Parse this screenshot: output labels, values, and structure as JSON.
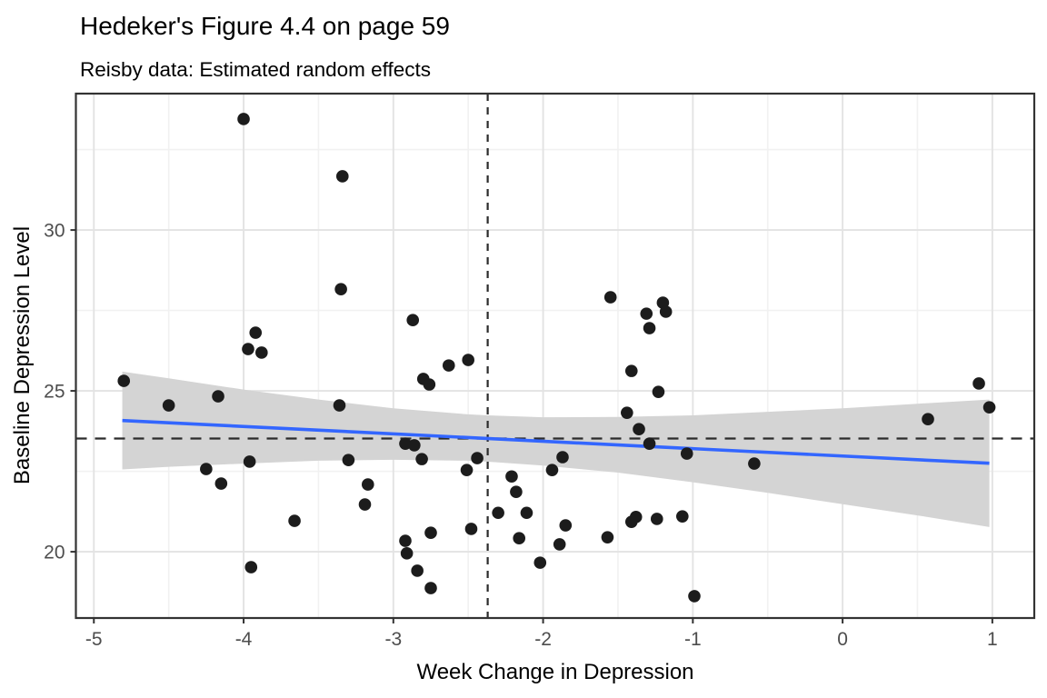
{
  "title": "Hedeker's Figure 4.4 on page 59",
  "subtitle": "Reisby data: Estimated random effects",
  "chart_data": {
    "type": "scatter",
    "title": "Hedeker's Figure 4.4 on page 59",
    "subtitle": "Reisby data: Estimated random effects",
    "xlabel": "Week Change in Depression",
    "ylabel": "Baseline Depression Level",
    "xlim": [
      -5.12,
      1.28
    ],
    "ylim": [
      17.94,
      34.24
    ],
    "x_ticks": [
      -5,
      -4,
      -3,
      -2,
      -1,
      0,
      1
    ],
    "y_ticks": [
      20,
      25,
      30
    ],
    "x_minor_ticks": [
      -4.5,
      -3.5,
      -2.5,
      -1.5,
      -0.5,
      0.5
    ],
    "y_minor_ticks": [
      22.5,
      27.5,
      32.5
    ],
    "grid": true,
    "legend_position": "none",
    "reference_lines": {
      "vline_x": -2.37,
      "hline_y": 23.52,
      "style": "dashed"
    },
    "smooth_line": {
      "type": "linear",
      "x": [
        -4.81,
        0.98
      ],
      "y": [
        24.08,
        22.75
      ]
    },
    "ribbon": {
      "x": [
        -4.81,
        -4.5,
        -4.0,
        -3.5,
        -3.0,
        -2.5,
        -2.37,
        -2.0,
        -1.5,
        -1.0,
        -0.5,
        0.0,
        0.5,
        0.98
      ],
      "upper": [
        25.6,
        25.39,
        25.04,
        24.73,
        24.46,
        24.27,
        24.24,
        24.18,
        24.19,
        24.24,
        24.35,
        24.46,
        24.6,
        24.73
      ],
      "lower": [
        22.56,
        22.64,
        22.74,
        22.83,
        22.86,
        22.83,
        22.8,
        22.68,
        22.46,
        22.16,
        21.83,
        21.48,
        21.13,
        20.77
      ]
    },
    "points": [
      [
        -4.8,
        25.31
      ],
      [
        -4.5,
        24.55
      ],
      [
        -4.17,
        24.83
      ],
      [
        -4.25,
        22.57
      ],
      [
        -4.15,
        22.12
      ],
      [
        -3.96,
        22.8
      ],
      [
        -3.66,
        20.96
      ],
      [
        -3.95,
        19.52
      ],
      [
        -4.0,
        33.45
      ],
      [
        -3.92,
        26.81
      ],
      [
        -3.97,
        26.3
      ],
      [
        -3.88,
        26.19
      ],
      [
        -3.34,
        31.67
      ],
      [
        -3.35,
        28.16
      ],
      [
        -3.36,
        24.55
      ],
      [
        -3.3,
        22.85
      ],
      [
        -3.17,
        22.09
      ],
      [
        -3.19,
        21.47
      ],
      [
        -2.87,
        27.2
      ],
      [
        -2.92,
        23.36
      ],
      [
        -2.86,
        23.31
      ],
      [
        -2.81,
        22.88
      ],
      [
        -2.92,
        20.34
      ],
      [
        -2.91,
        19.95
      ],
      [
        -2.84,
        19.41
      ],
      [
        -2.75,
        18.87
      ],
      [
        -2.75,
        20.59
      ],
      [
        -2.8,
        25.37
      ],
      [
        -2.76,
        25.2
      ],
      [
        -2.63,
        25.79
      ],
      [
        -2.5,
        25.96
      ],
      [
        -2.44,
        22.91
      ],
      [
        -2.51,
        22.54
      ],
      [
        -2.48,
        20.71
      ],
      [
        -2.3,
        21.21
      ],
      [
        -2.21,
        22.34
      ],
      [
        -2.18,
        21.86
      ],
      [
        -2.16,
        20.42
      ],
      [
        -2.11,
        21.21
      ],
      [
        -2.02,
        19.66
      ],
      [
        -1.94,
        22.54
      ],
      [
        -1.87,
        22.94
      ],
      [
        -1.89,
        20.23
      ],
      [
        -1.85,
        20.82
      ],
      [
        -1.55,
        27.91
      ],
      [
        -1.57,
        20.45
      ],
      [
        -1.41,
        25.62
      ],
      [
        -1.44,
        24.32
      ],
      [
        -1.36,
        23.81
      ],
      [
        -1.29,
        23.36
      ],
      [
        -1.31,
        27.4
      ],
      [
        -1.29,
        26.95
      ],
      [
        -1.2,
        27.74
      ],
      [
        -1.18,
        27.46
      ],
      [
        -1.23,
        24.97
      ],
      [
        -1.41,
        20.93
      ],
      [
        -1.38,
        21.08
      ],
      [
        -1.24,
        21.02
      ],
      [
        -1.07,
        21.1
      ],
      [
        -1.04,
        23.05
      ],
      [
        -0.99,
        18.62
      ],
      [
        -0.59,
        22.74
      ],
      [
        0.57,
        24.12
      ],
      [
        0.91,
        25.23
      ],
      [
        0.98,
        24.49
      ]
    ],
    "colors": {
      "point": "#1c1c1c",
      "smooth_line": "#3366FF",
      "ribbon": "#d4d4d4",
      "grid_major": "#e3e3e3",
      "grid_minor": "#f1f1f1",
      "panel_border": "#333333",
      "tick_mark": "#333333",
      "tick_label": "#4d4d4d",
      "reference_line": "#2b2b2b",
      "text": "#000000",
      "background": "#ffffff"
    }
  }
}
